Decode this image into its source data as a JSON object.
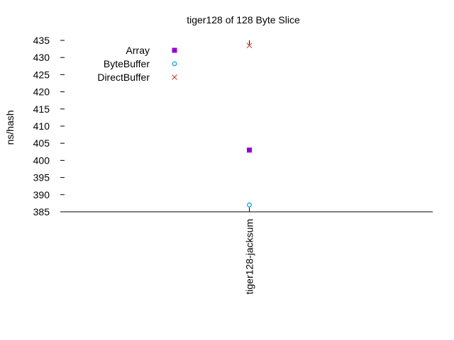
{
  "chart_data": {
    "type": "scatter",
    "title": "tiger128 of 128 Byte Slice",
    "xlabel": "",
    "ylabel": "ns/hash",
    "categories": [
      "tiger128-jacksum"
    ],
    "ylim": [
      385,
      435
    ],
    "yticks": [
      385,
      390,
      395,
      400,
      405,
      410,
      415,
      420,
      425,
      430,
      435
    ],
    "grid": false,
    "legend_position": "top-left",
    "series": [
      {
        "name": "Array",
        "values": [
          403
        ],
        "marker": "filled-square",
        "color": "#9400d3"
      },
      {
        "name": "ByteBuffer",
        "values": [
          387
        ],
        "marker": "open-circle",
        "color": "#009ed7"
      },
      {
        "name": "DirectBuffer",
        "values": [
          433.5
        ],
        "marker": "cross",
        "color": "#c0392b"
      }
    ]
  }
}
